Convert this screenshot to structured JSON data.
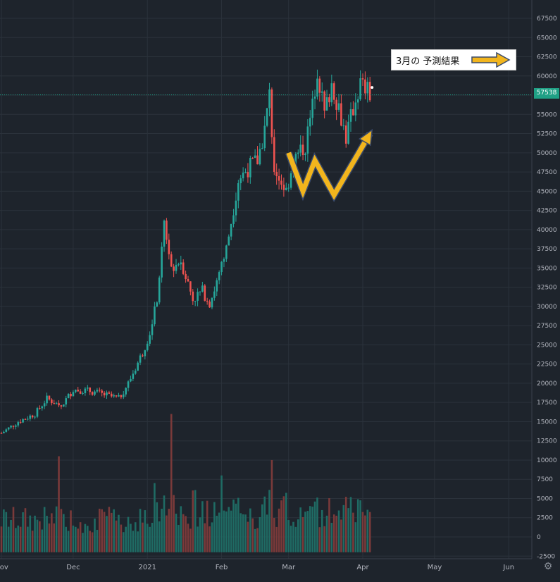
{
  "chart_data": {
    "type": "candlestick",
    "title": "",
    "xlabel": "",
    "ylabel": "",
    "ylim": [
      -3000,
      70000
    ],
    "grid": true,
    "y_ticks": [
      -2500,
      0,
      2500,
      5000,
      7500,
      10000,
      12500,
      15000,
      17500,
      20000,
      22500,
      25000,
      27500,
      30000,
      32500,
      35000,
      37500,
      40000,
      42500,
      45000,
      47500,
      50000,
      52500,
      55000,
      57500,
      60000,
      62500,
      65000,
      67500
    ],
    "x_ticks": [
      {
        "date": "2020-11-01",
        "label": "Nov"
      },
      {
        "date": "2020-12-01",
        "label": "Dec"
      },
      {
        "date": "2021-01-01",
        "label": "2021"
      },
      {
        "date": "2021-02-01",
        "label": "Feb"
      },
      {
        "date": "2021-03-01",
        "label": "Mar"
      },
      {
        "date": "2021-04-01",
        "label": "Apr"
      },
      {
        "date": "2021-05-01",
        "label": "May"
      },
      {
        "date": "2021-06-01",
        "label": "Jun"
      }
    ],
    "last_price": 57538,
    "last_price_label": "57538",
    "colors": {
      "up": "#26a69a",
      "down": "#ef5350",
      "volume_up": "#1f6b64",
      "volume_down": "#7a3a3a",
      "background": "#1e242c",
      "grid": "#2b323b",
      "axis_text": "#b2b5be",
      "annotation_arrow": "#f2b51d"
    },
    "price_path": [
      [
        "2020-11-01",
        13500
      ],
      [
        "2020-11-08",
        15000
      ],
      [
        "2020-11-15",
        16000
      ],
      [
        "2020-11-20",
        18000
      ],
      [
        "2020-11-26",
        17000
      ],
      [
        "2020-12-01",
        19200
      ],
      [
        "2020-12-08",
        19000
      ],
      [
        "2020-12-14",
        18500
      ],
      [
        "2020-12-20",
        18000
      ],
      [
        "2020-12-24",
        20000
      ],
      [
        "2020-12-30",
        24000
      ],
      [
        "2021-01-03",
        27500
      ],
      [
        "2021-01-06",
        33000
      ],
      [
        "2021-01-08",
        41000
      ],
      [
        "2021-01-11",
        35000
      ],
      [
        "2021-01-15",
        36000
      ],
      [
        "2021-01-20",
        31000
      ],
      [
        "2021-01-24",
        32000
      ],
      [
        "2021-01-27",
        30500
      ],
      [
        "2021-01-31",
        34000
      ],
      [
        "2021-02-03",
        37500
      ],
      [
        "2021-02-08",
        46500
      ],
      [
        "2021-02-12",
        48000
      ],
      [
        "2021-02-16",
        49000
      ],
      [
        "2021-02-19",
        53000
      ],
      [
        "2021-02-21",
        57500
      ],
      [
        "2021-02-23",
        48000
      ],
      [
        "2021-02-28",
        45000
      ],
      [
        "2021-03-03",
        49000
      ],
      [
        "2021-03-08",
        51000
      ],
      [
        "2021-03-11",
        56000
      ],
      [
        "2021-03-13",
        61000
      ],
      [
        "2021-03-16",
        55000
      ],
      [
        "2021-03-19",
        59000
      ],
      [
        "2021-03-22",
        56000
      ],
      [
        "2021-03-25",
        52000
      ],
      [
        "2021-03-29",
        57000
      ],
      [
        "2021-03-31",
        59000
      ],
      [
        "2021-04-03",
        58000
      ],
      [
        "2021-04-04",
        57538
      ]
    ],
    "volume_spikes": [
      {
        "date": "2020-11-25",
        "value": 10500
      },
      {
        "date": "2021-01-11",
        "value": 16000
      },
      {
        "date": "2021-02-22",
        "value": 10000
      },
      {
        "date": "2021-01-04",
        "value": 7000
      },
      {
        "date": "2021-02-01",
        "value": 8000
      }
    ],
    "annotation": {
      "text": "3月の 予測結果",
      "arrow_color": "#f2b51d",
      "projection": [
        [
          "2021-03-01",
          50000
        ],
        [
          "2021-03-07",
          45000
        ],
        [
          "2021-03-12",
          49000
        ],
        [
          "2021-03-20",
          44500
        ],
        [
          "2021-04-04",
          52500
        ]
      ]
    }
  },
  "icons": {
    "settings": "gear-icon"
  }
}
